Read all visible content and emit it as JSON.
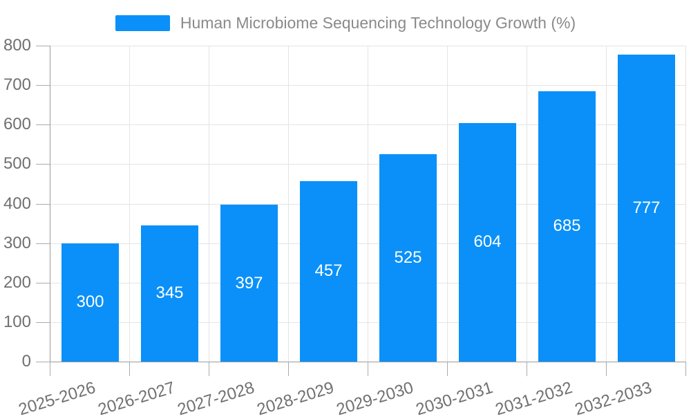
{
  "chart_data": {
    "type": "bar",
    "title": "Human Microbiome Sequencing Technology Growth (%)",
    "legend_position": "top-center",
    "categories": [
      "2025-2026",
      "2026-2027",
      "2027-2028",
      "2028-2029",
      "2029-2030",
      "2030-2031",
      "2031-2032",
      "2032-2033"
    ],
    "values": [
      300,
      345,
      397,
      457,
      525,
      604,
      685,
      777
    ],
    "value_labels": [
      "300",
      "345",
      "397",
      "457",
      "525",
      "604",
      "685",
      "777"
    ],
    "xlabel": "",
    "ylabel": "",
    "ylim": [
      0,
      800
    ],
    "ytick_interval": 100,
    "ytick_labels": [
      "0",
      "100",
      "200",
      "300",
      "400",
      "500",
      "600",
      "700",
      "800"
    ],
    "grid": "on",
    "x_label_rotation_deg": -17,
    "colors": {
      "bar": "#0a90f8",
      "grid_line": "#e4e4e4",
      "axis_line": "#9a9a9a",
      "tick_mark": "#ababab",
      "axis_label_text": "#707070",
      "legend_text": "#8a8a8a",
      "value_label_text": "#ffffff",
      "background": "#ffffff"
    }
  }
}
